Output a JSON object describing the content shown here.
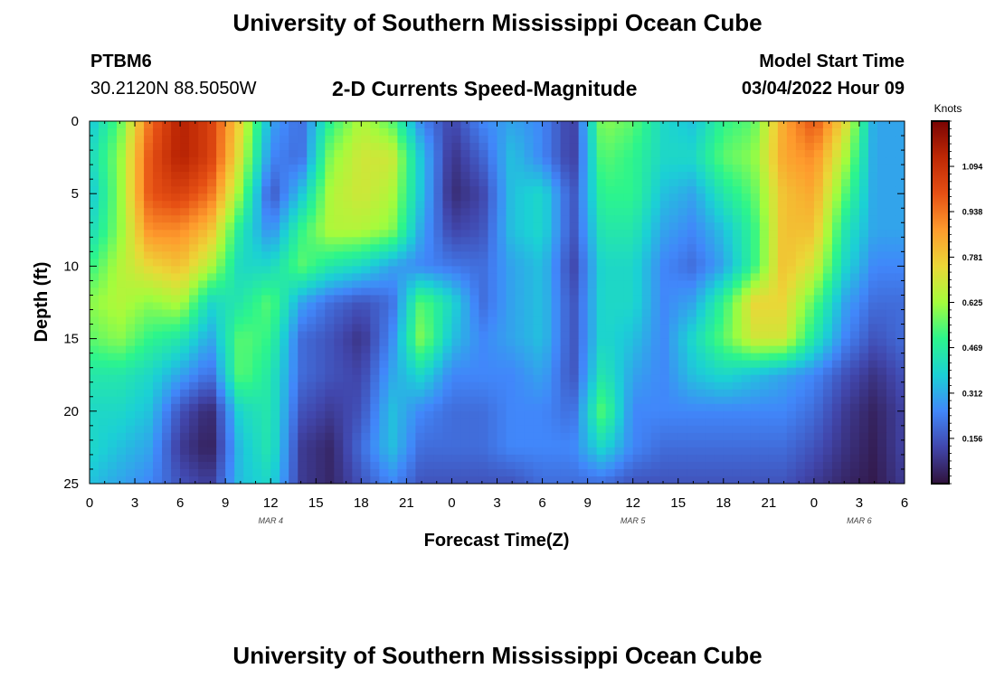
{
  "header": {
    "title_top": "University of Southern Mississippi Ocean Cube",
    "title_bottom": "University of Southern Mississippi Ocean Cube",
    "station_id": "PTBM6",
    "coords": "30.2120N  88.5050W",
    "start_label": "Model Start Time",
    "start_value": "03/04/2022 Hour 09"
  },
  "chart_data": {
    "type": "heatmap",
    "title": "2-D Currents Speed-Magnitude",
    "xlabel": "Forecast Time(Z)",
    "ylabel": "Depth (ft)",
    "colorbar_label": "Knots",
    "colorbar_ticks": [
      "1.094",
      "0.938",
      "0.781",
      "0.625",
      "0.469",
      "0.312",
      "0.156"
    ],
    "colorbar_values": [
      1.094,
      0.938,
      0.781,
      0.625,
      0.469,
      0.312,
      0.156
    ],
    "zlim": [
      0,
      1.25
    ],
    "x_hours": [
      0,
      3,
      6,
      9,
      12,
      15,
      18,
      21,
      24,
      27,
      30,
      33,
      36,
      39,
      42,
      45,
      48,
      51,
      54
    ],
    "x_tick_labels": [
      "0",
      "3",
      "6",
      "9",
      "12",
      "15",
      "18",
      "21",
      "0",
      "3",
      "6",
      "9",
      "12",
      "15",
      "18",
      "21",
      "0",
      "3",
      "6"
    ],
    "date_labels": [
      {
        "text": "MAR 4",
        "hour": 12
      },
      {
        "text": "MAR 5",
        "hour": 36
      },
      {
        "text": "MAR 6",
        "hour": 51
      }
    ],
    "xlim": [
      0,
      54
    ],
    "ylim": [
      0,
      25
    ],
    "y_ticks": [
      0,
      5,
      10,
      15,
      20,
      25
    ],
    "y_tick_labels": [
      "0",
      "5",
      "10",
      "15",
      "20",
      "25"
    ],
    "depth_levels_ft": [
      0,
      2.5,
      5,
      7.5,
      10,
      12.5,
      15,
      17.5,
      20,
      22.5,
      25
    ],
    "time_hours": [
      0,
      2,
      4,
      6,
      8,
      10,
      12,
      14,
      16,
      18,
      20,
      22,
      24,
      26,
      28,
      30,
      32,
      34,
      36,
      38,
      40,
      42,
      44,
      46,
      48,
      50,
      52,
      54
    ],
    "speed_knots": [
      [
        0.35,
        0.55,
        0.95,
        1.15,
        1.05,
        0.75,
        0.3,
        0.2,
        0.5,
        0.65,
        0.55,
        0.25,
        0.12,
        0.25,
        0.3,
        0.25,
        0.1,
        0.6,
        0.55,
        0.4,
        0.35,
        0.5,
        0.55,
        0.85,
        1.0,
        0.75,
        0.3,
        0.3
      ],
      [
        0.4,
        0.6,
        1.0,
        1.15,
        1.05,
        0.7,
        0.25,
        0.2,
        0.6,
        0.7,
        0.7,
        0.35,
        0.08,
        0.18,
        0.35,
        0.25,
        0.1,
        0.55,
        0.5,
        0.4,
        0.4,
        0.55,
        0.6,
        0.85,
        0.9,
        0.65,
        0.3,
        0.3
      ],
      [
        0.35,
        0.6,
        1.0,
        1.05,
        0.95,
        0.6,
        0.15,
        0.35,
        0.65,
        0.7,
        0.65,
        0.35,
        0.06,
        0.12,
        0.35,
        0.4,
        0.15,
        0.5,
        0.5,
        0.35,
        0.3,
        0.45,
        0.55,
        0.8,
        0.85,
        0.55,
        0.3,
        0.3
      ],
      [
        0.4,
        0.6,
        0.9,
        0.9,
        0.8,
        0.45,
        0.25,
        0.5,
        0.65,
        0.65,
        0.6,
        0.3,
        0.12,
        0.15,
        0.35,
        0.4,
        0.15,
        0.45,
        0.45,
        0.3,
        0.25,
        0.35,
        0.5,
        0.8,
        0.8,
        0.45,
        0.3,
        0.3
      ],
      [
        0.5,
        0.65,
        0.75,
        0.8,
        0.65,
        0.4,
        0.4,
        0.55,
        0.45,
        0.4,
        0.3,
        0.25,
        0.22,
        0.2,
        0.3,
        0.35,
        0.12,
        0.4,
        0.4,
        0.25,
        0.2,
        0.3,
        0.5,
        0.8,
        0.7,
        0.4,
        0.25,
        0.25
      ],
      [
        0.6,
        0.65,
        0.6,
        0.65,
        0.4,
        0.45,
        0.55,
        0.3,
        0.2,
        0.15,
        0.2,
        0.55,
        0.4,
        0.2,
        0.3,
        0.35,
        0.15,
        0.4,
        0.4,
        0.25,
        0.3,
        0.5,
        0.75,
        0.75,
        0.55,
        0.3,
        0.2,
        0.2
      ],
      [
        0.55,
        0.6,
        0.5,
        0.45,
        0.3,
        0.55,
        0.5,
        0.2,
        0.15,
        0.08,
        0.25,
        0.6,
        0.35,
        0.25,
        0.3,
        0.35,
        0.15,
        0.4,
        0.35,
        0.25,
        0.4,
        0.55,
        0.7,
        0.7,
        0.45,
        0.25,
        0.15,
        0.2
      ],
      [
        0.45,
        0.45,
        0.4,
        0.3,
        0.2,
        0.55,
        0.45,
        0.2,
        0.15,
        0.12,
        0.3,
        0.4,
        0.25,
        0.25,
        0.25,
        0.3,
        0.15,
        0.45,
        0.3,
        0.25,
        0.35,
        0.4,
        0.35,
        0.3,
        0.25,
        0.15,
        0.08,
        0.15
      ],
      [
        0.4,
        0.4,
        0.35,
        0.15,
        0.05,
        0.4,
        0.45,
        0.15,
        0.1,
        0.15,
        0.35,
        0.25,
        0.2,
        0.2,
        0.25,
        0.25,
        0.2,
        0.55,
        0.25,
        0.25,
        0.25,
        0.25,
        0.25,
        0.25,
        0.2,
        0.1,
        0.04,
        0.12
      ],
      [
        0.4,
        0.35,
        0.3,
        0.1,
        0.03,
        0.35,
        0.45,
        0.1,
        0.05,
        0.2,
        0.35,
        0.2,
        0.2,
        0.2,
        0.25,
        0.25,
        0.25,
        0.4,
        0.25,
        0.2,
        0.2,
        0.2,
        0.2,
        0.2,
        0.15,
        0.08,
        0.03,
        0.12
      ],
      [
        0.35,
        0.3,
        0.25,
        0.15,
        0.1,
        0.35,
        0.4,
        0.1,
        0.05,
        0.15,
        0.25,
        0.15,
        0.15,
        0.15,
        0.15,
        0.2,
        0.2,
        0.2,
        0.15,
        0.15,
        0.15,
        0.15,
        0.15,
        0.15,
        0.1,
        0.05,
        0.02,
        0.1
      ]
    ]
  }
}
